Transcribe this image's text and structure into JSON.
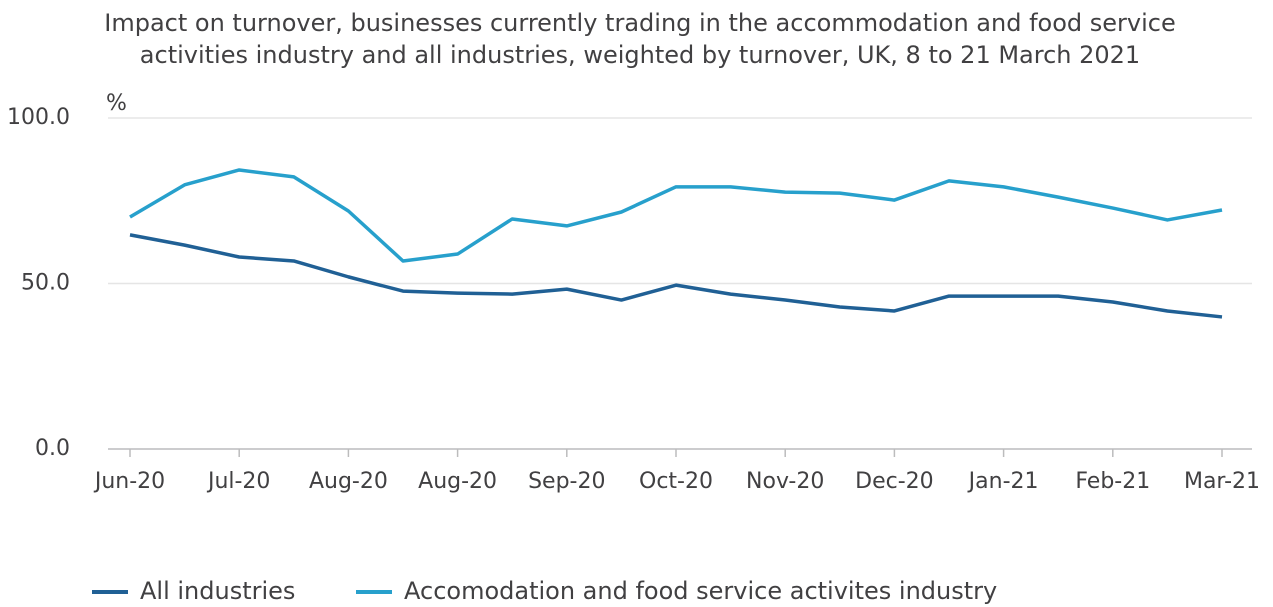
{
  "chart_data": {
    "type": "line",
    "title": [
      "Impact on turnover, businesses currently trading in the accommodation and food service",
      "activities industry and all industries, weighted by turnover, UK, 8 to 21 March 2021"
    ],
    "y_label": "%",
    "categories": [
      "Jun-20",
      null,
      "Jul-20",
      null,
      "Aug-20",
      null,
      "Aug-20",
      null,
      "Sep-20",
      null,
      "Oct-20",
      null,
      "Nov-20",
      null,
      "Dec-20",
      null,
      "Jan-21",
      null,
      "Feb-21",
      null,
      "Mar-21"
    ],
    "series": [
      {
        "name": "All industries",
        "color": "#206095",
        "values": [
          64.7,
          61.6,
          58.0,
          56.8,
          52.0,
          47.7,
          47.1,
          46.8,
          48.3,
          45.0,
          49.5,
          46.8,
          45.0,
          42.9,
          41.7,
          46.2,
          46.2,
          46.2,
          44.4,
          41.7,
          39.9
        ]
      },
      {
        "name": "Accomodation and food service activites industry",
        "color": "#27a0cc",
        "values": [
          70.1,
          79.8,
          84.3,
          82.2,
          71.9,
          56.8,
          58.9,
          69.5,
          67.4,
          71.6,
          79.2,
          79.2,
          77.6,
          77.3,
          75.2,
          81.0,
          79.2,
          76.1,
          72.8,
          69.2,
          72.2
        ]
      }
    ],
    "ylim": [
      0,
      100
    ],
    "yticks": [
      {
        "value": 0,
        "label": "0.0"
      },
      {
        "value": 50,
        "label": "50.0"
      },
      {
        "value": 100,
        "label": "100.0"
      }
    ],
    "grid": true,
    "legend": "bottom"
  }
}
